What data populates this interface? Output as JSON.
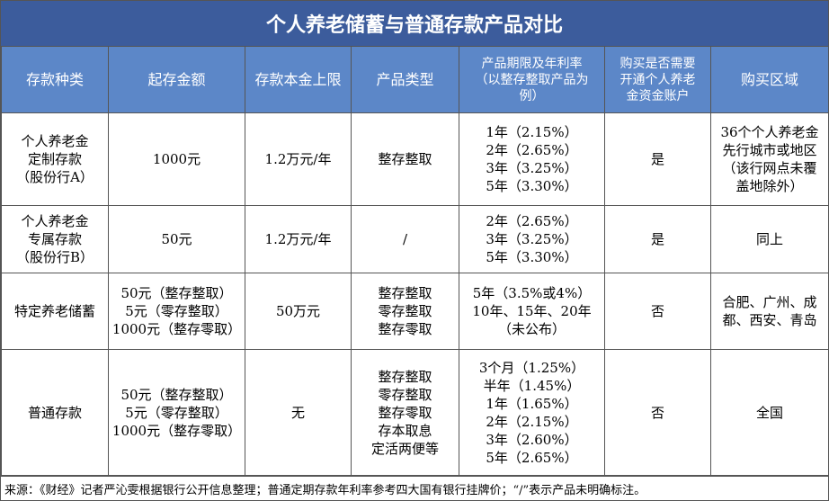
{
  "title": "个人养老储蓄与普通存款产品对比",
  "table": {
    "header": [
      [
        "存款种类"
      ],
      [
        "起存金额"
      ],
      [
        "存款本金上限"
      ],
      [
        "产品类型"
      ],
      [
        "产品期限及年利率",
        "（以整存整取产品为",
        "例）"
      ],
      [
        "购买是否需要",
        "开通个人养老",
        "金资金账户"
      ],
      [
        "购买区域"
      ]
    ],
    "rows": [
      [
        [
          "个人养老金",
          "定制存款",
          "（股份行A）"
        ],
        [
          "1000元"
        ],
        [
          "1.2万元/年"
        ],
        [
          "整存整取"
        ],
        [
          "1年（2.15%）",
          "2年（2.65%）",
          "3年（3.25%）",
          "5年（3.30%）"
        ],
        [
          "是"
        ],
        [
          "36个个人养老金",
          "先行城市或地区",
          "（该行网点未覆",
          "盖地除外）"
        ]
      ],
      [
        [
          "个人养老金",
          "专属存款",
          "（股份行B）"
        ],
        [
          "50元"
        ],
        [
          "1.2万元/年"
        ],
        [
          "/"
        ],
        [
          "2年（2.65%）",
          "3年（3.25%）",
          "5年（3.30%）"
        ],
        [
          "是"
        ],
        [
          "同上"
        ]
      ],
      [
        [
          "特定养老储蓄"
        ],
        [
          "50元（整存整取）",
          "5元（零存整取）",
          "1000元（整存零取）"
        ],
        [
          "50万元"
        ],
        [
          "整存整取",
          "零存整取",
          "整存零取"
        ],
        [
          "5年（3.5%或4%）",
          "10年、15年、20年",
          "（未公布）"
        ],
        [
          "否"
        ],
        [
          "合肥、广州、成",
          "都、西安、青岛"
        ]
      ],
      [
        [
          "普通存款"
        ],
        [
          "50元（整存整取）",
          "5元（零存整取）",
          "1000元（整存零取）"
        ],
        [
          "无"
        ],
        [
          "整存整取",
          "零存整取",
          "整存零取",
          "存本取息",
          "定活两便等"
        ],
        [
          "3个月（1.25%）",
          "半年（1.45%）",
          "1年（1.65%）",
          "2年（2.15%）",
          "3年（2.60%）",
          "5年（2.65%）"
        ],
        [
          "否"
        ],
        [
          "全国"
        ]
      ]
    ]
  },
  "footer": "来源：《财经》记者严沁雯根据银行公开信息整理；普通定期存款年利率参考四大国有银行挂牌价；“/”表示产品未明确标注。"
}
